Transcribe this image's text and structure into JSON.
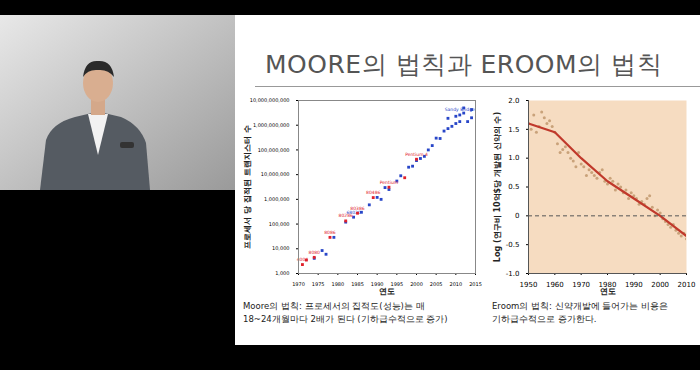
{
  "slide": {
    "title": "MOORE의 법칙과 EROOM의 법칙"
  },
  "chart_data": [
    {
      "type": "scatter",
      "x_label": "연도",
      "y_label": "프로세서 당 집적된 트랜지스터 수",
      "caption": [
        "Moore의 법칙: 프로세서의 집적도(성능)는 매",
        "18~24개월마다 2배가 된다 (기하급수적으로 증가)"
      ],
      "log": "y",
      "grid": false,
      "xlim": [
        1970,
        2015
      ],
      "xticks": [
        1970,
        1975,
        1980,
        1985,
        1990,
        1995,
        2000,
        2005,
        2010,
        2015
      ],
      "ylim": [
        1000,
        10000000000
      ],
      "yticks": [
        {
          "value": 1000,
          "label": "1,000"
        },
        {
          "value": 10000,
          "label": "10,000"
        },
        {
          "value": 100000,
          "label": "100,000"
        },
        {
          "value": 1000000,
          "label": "1,000,000"
        },
        {
          "value": 10000000,
          "label": "10,000,000"
        },
        {
          "value": 100000000,
          "label": "100,000,000"
        },
        {
          "value": 1000000000,
          "label": "1,000,000,000"
        },
        {
          "value": 10000000000,
          "label": "10,000,000,000"
        }
      ],
      "series": [
        {
          "color": "#2846c8",
          "marker": "square",
          "x": [
            1974,
            1976,
            1977,
            1979,
            1982,
            1984,
            1986,
            1988,
            1990,
            1991,
            1992,
            1993,
            1995,
            1996,
            1998,
            1999,
            2000,
            2001,
            2002,
            2003,
            2004,
            2005,
            2006,
            2007,
            2008,
            2008,
            2009,
            2010,
            2010,
            2011,
            2011,
            2012,
            2012,
            2013,
            2014,
            2014
          ],
          "values": [
            4100,
            8500,
            6000,
            29000,
            120000,
            190000,
            300000,
            600000,
            1200000,
            1000000,
            3000000,
            2500000,
            5500000,
            9000000,
            20000000,
            22000000,
            37000000,
            45000000,
            55000000,
            100000000,
            150000000,
            300000000,
            290000000,
            580000000,
            730000000,
            1900000000,
            900000000,
            1170000000,
            2300000000,
            2600000000,
            1400000000,
            3100000000,
            5000000000,
            1400000000,
            4300000000,
            2000000000
          ],
          "labels": [
            null,
            null,
            null,
            null,
            null,
            "68020",
            null,
            null,
            null,
            null,
            null,
            null,
            null,
            null,
            null,
            null,
            null,
            null,
            null,
            null,
            null,
            null,
            null,
            null,
            null,
            null,
            null,
            null,
            null,
            "Sandy Bridge",
            null,
            null,
            null,
            null,
            null,
            null
          ]
        },
        {
          "color": "#e0202a",
          "marker": "square",
          "x": [
            1971,
            1972,
            1974,
            1978,
            1982,
            1985,
            1989,
            1993,
            1997,
            2000
          ],
          "values": [
            2300,
            3500,
            4500,
            29000,
            134000,
            275000,
            1180000,
            3100000,
            7500000,
            42000000
          ],
          "labels": [
            "4004",
            null,
            "8080",
            "8086",
            "80286",
            "80386",
            "80486",
            "Pentium",
            null,
            "Pentium 4"
          ]
        }
      ]
    },
    {
      "type": "scatter",
      "x_label": "연도",
      "y_label": "Log (연구비 10억$당 개발된 신약의 수)",
      "caption": [
        "Eroom의 법칙: 신약개발에 들어가는 비용은",
        "기하급수적으로 증가한다."
      ],
      "grid": false,
      "xlim": [
        1950,
        2010
      ],
      "xticks": [
        1950,
        1960,
        1970,
        1980,
        1990,
        2000,
        2010
      ],
      "ylim": [
        -1.0,
        2.0
      ],
      "yticks": [
        {
          "value": -1.0,
          "label": "-1.0"
        },
        -0.5,
        0,
        0.5,
        {
          "value": 1.0,
          "label": "1.0"
        },
        1.5,
        {
          "value": 2.0,
          "label": "2.0"
        }
      ],
      "series": [
        {
          "color": "#c9a27a",
          "marker": "circle",
          "x": [
            1950,
            1951,
            1952,
            1953,
            1954,
            1955,
            1956,
            1957,
            1958,
            1959,
            1960,
            1961,
            1962,
            1963,
            1964,
            1965,
            1966,
            1967,
            1968,
            1969,
            1970,
            1971,
            1972,
            1973,
            1974,
            1975,
            1976,
            1977,
            1978,
            1979,
            1980,
            1981,
            1982,
            1983,
            1984,
            1985,
            1986,
            1987,
            1988,
            1989,
            1990,
            1991,
            1992,
            1993,
            1994,
            1995,
            1996,
            1997,
            1998,
            1999,
            2000,
            2001,
            2002,
            2003,
            2004,
            2005,
            2006,
            2007,
            2008,
            2009,
            2010
          ],
          "values": [
            1.6,
            1.5,
            1.75,
            1.45,
            1.55,
            1.8,
            1.7,
            1.6,
            1.65,
            1.55,
            1.45,
            1.25,
            1.1,
            1.15,
            1.2,
            1.1,
            1.0,
            0.95,
            0.85,
            1.1,
            0.9,
            0.85,
            0.7,
            0.8,
            0.75,
            0.7,
            0.65,
            0.75,
            0.8,
            0.6,
            0.55,
            0.65,
            0.6,
            0.45,
            0.55,
            0.5,
            0.4,
            0.45,
            0.3,
            0.4,
            0.35,
            0.3,
            0.2,
            0.25,
            0.2,
            0.3,
            0.35,
            0.15,
            0.0,
            0.1,
            0.05,
            -0.05,
            -0.1,
            -0.15,
            -0.2,
            -0.15,
            -0.25,
            -0.3,
            -0.35,
            -0.3,
            -0.4
          ]
        },
        {
          "type": "line",
          "color": "#c0392b",
          "x": [
            1950,
            1960,
            1970,
            1980,
            1990,
            2000,
            2010
          ],
          "values": [
            1.6,
            1.45,
            1.0,
            0.6,
            0.3,
            0.0,
            -0.35
          ]
        },
        {
          "type": "hline",
          "color": "#555555",
          "line_style": "dashed",
          "values": [
            0
          ]
        }
      ]
    }
  ]
}
